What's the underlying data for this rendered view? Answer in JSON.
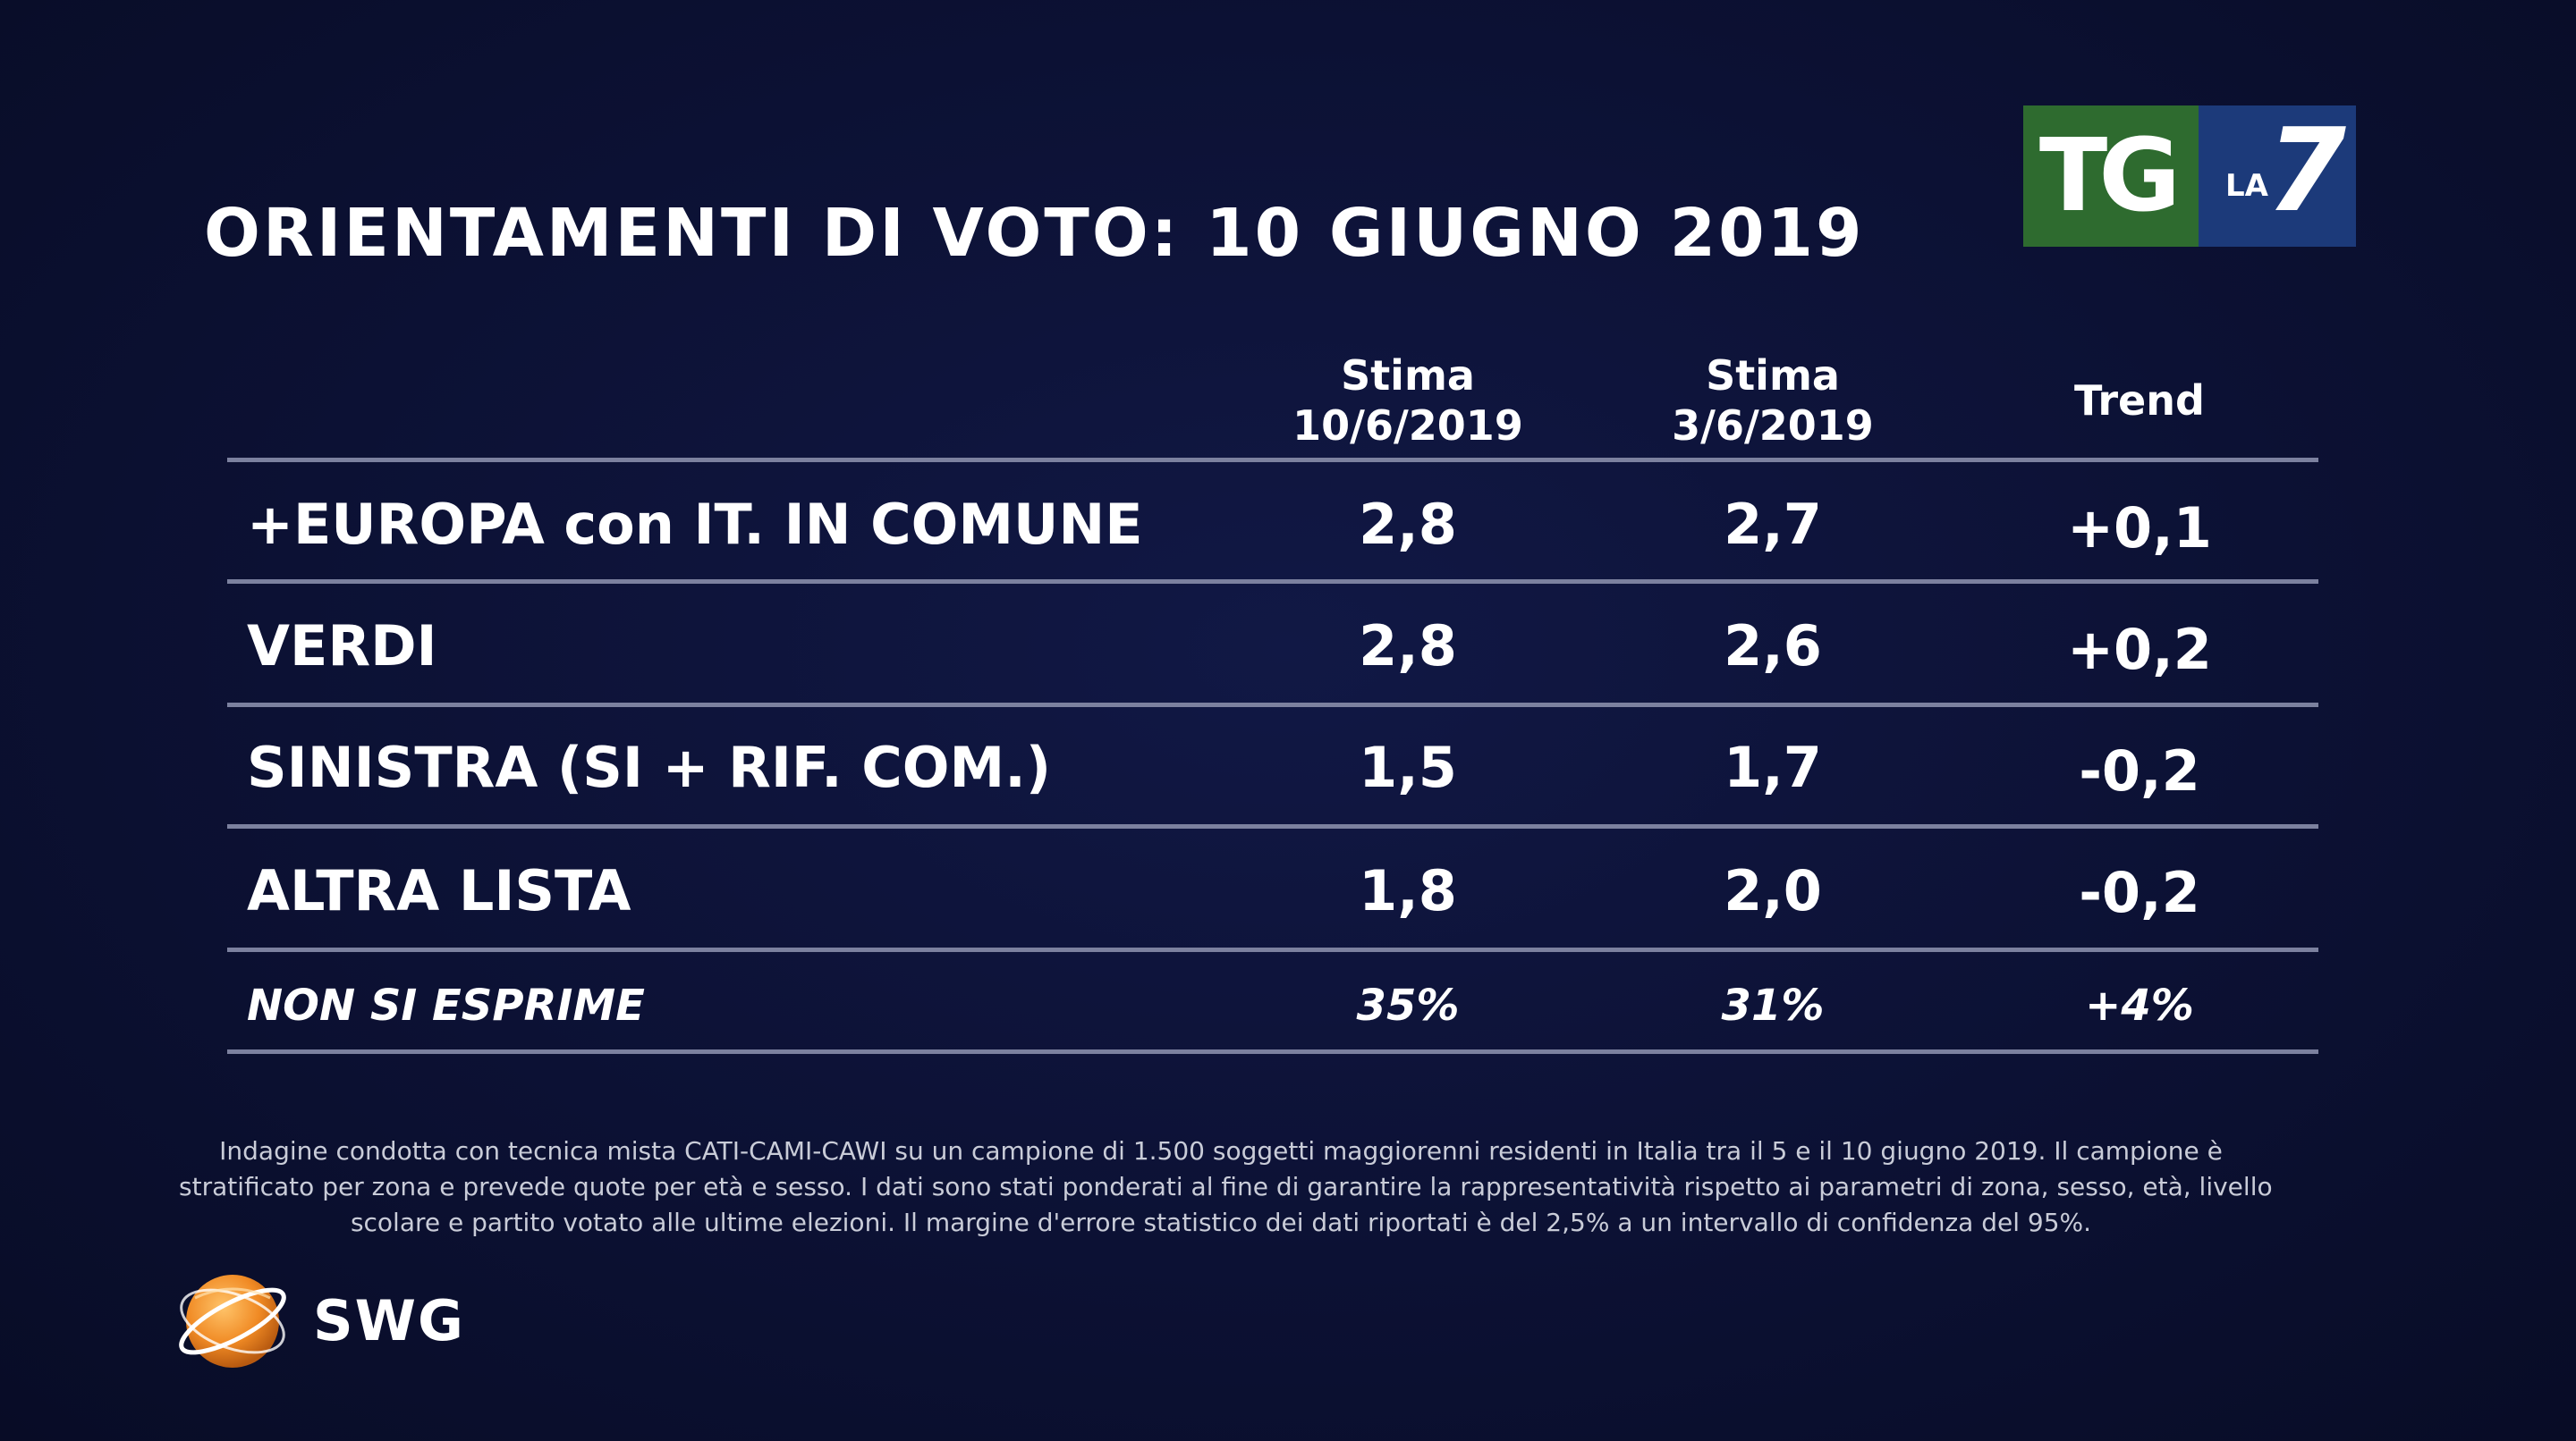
{
  "title": "ORIENTAMENTI DI VOTO: 10 GIUGNO 2019",
  "logo": {
    "left_text": "TG",
    "small_text": "LA",
    "big_text": "7",
    "colors": {
      "green": "#2e6b2f",
      "blue": "#1c3a7a"
    }
  },
  "table": {
    "headers": [
      {
        "line1": "Stima",
        "line2": "10/6/2019"
      },
      {
        "line1": "Stima",
        "line2": "3/6/2019"
      },
      {
        "line1": "Trend",
        "line2": ""
      }
    ],
    "rows": [
      {
        "label": "+EUROPA con IT. IN COMUNE",
        "stima_10_6": "2,8",
        "stima_3_6": "2,7",
        "trend": "+0,1"
      },
      {
        "label": "VERDI",
        "stima_10_6": "2,8",
        "stima_3_6": "2,6",
        "trend": "+0,2"
      },
      {
        "label": "SINISTRA (SI + RIF. COM.)",
        "stima_10_6": "1,5",
        "stima_3_6": "1,7",
        "trend": "-0,2"
      },
      {
        "label": "ALTRA LISTA",
        "stima_10_6": "1,8",
        "stima_3_6": "2,0",
        "trend": "-0,2"
      }
    ],
    "footer_row": {
      "label": "NON SI ESPRIME",
      "stima_10_6": "35%",
      "stima_3_6": "31%",
      "trend": "+4%"
    }
  },
  "footnote": {
    "line1": "Indagine condotta con tecnica mista CATI-CAMI-CAWI su un campione di 1.500 soggetti maggiorenni residenti in Italia tra il 5 e il 10 giugno 2019. Il campione è",
    "line2": "stratificato per zona e prevede quote per età e sesso. I dati sono stati ponderati al fine di garantire la rappresentatività rispetto ai parametri di zona, sesso, età, livello",
    "line3": "scolare e partito votato alle ultime elezioni. Il margine d'errore statistico dei dati riportati è del 2,5% a un intervallo di confidenza del 95%."
  },
  "swg": {
    "text": "SWG",
    "icon": "swg-globe-icon",
    "color": "#f08a24"
  },
  "background_color": "#0c1134"
}
